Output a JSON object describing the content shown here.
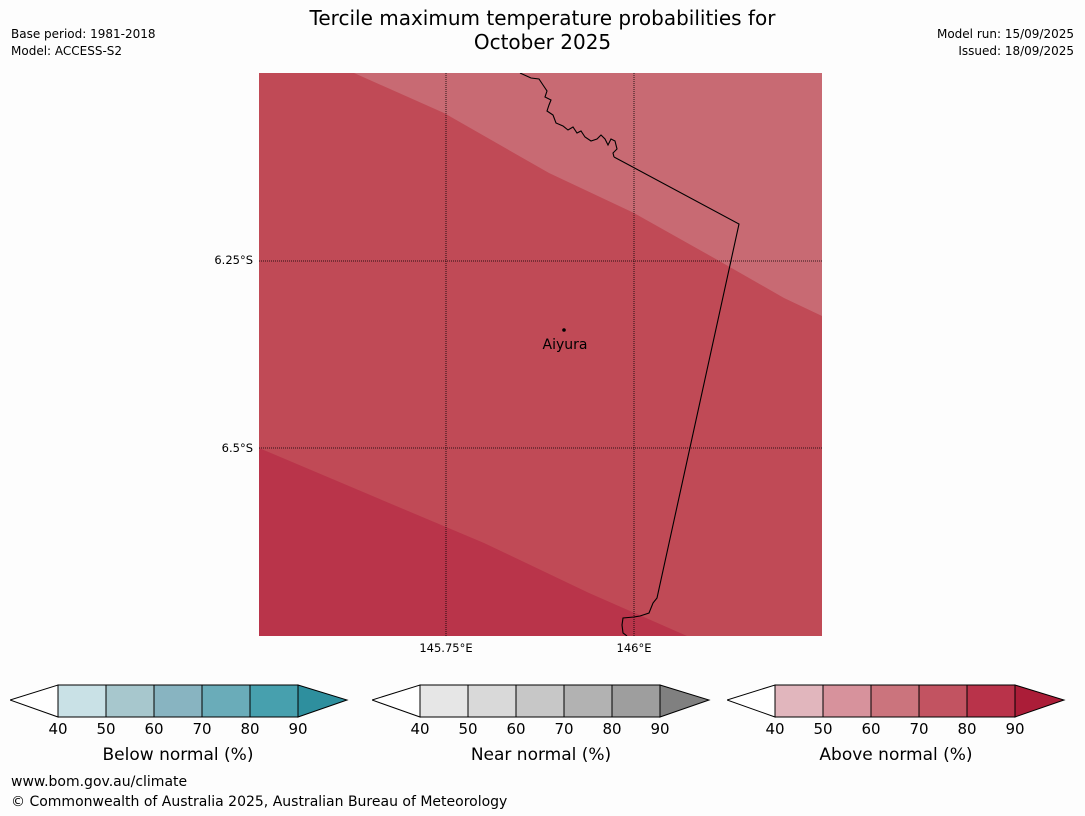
{
  "title": "Tercile maximum temperature probabilities for",
  "subtitle": "October 2025",
  "meta_left": {
    "base_period": "Base period: 1981-2018",
    "model": "Model: ACCESS-S2"
  },
  "meta_right": {
    "model_run": "Model run: 15/09/2025",
    "issued": "Issued: 18/09/2025"
  },
  "map": {
    "lat_ticks": [
      "6.25°S",
      "6.5°S"
    ],
    "lon_ticks": [
      "145.75°E",
      "146°E"
    ],
    "location": {
      "name": "Aiyura"
    },
    "colors": {
      "band_60_70": "#c86a73",
      "band_70_80": "#c04a56",
      "band_80_90": "#b9344a"
    }
  },
  "colorbars": {
    "below": {
      "label": "Below normal (%)",
      "ticks": [
        "40",
        "50",
        "60",
        "70",
        "80",
        "90"
      ],
      "colors": [
        "#ffffff",
        "#c9e1e6",
        "#a7c7cd",
        "#88b4c1",
        "#6aacb9",
        "#47a0ae",
        "#2e8f9e"
      ]
    },
    "near": {
      "label": "Near normal (%)",
      "ticks": [
        "40",
        "50",
        "60",
        "70",
        "80",
        "90"
      ],
      "colors": [
        "#ffffff",
        "#e6e6e6",
        "#d9d9d9",
        "#c7c7c7",
        "#b2b2b2",
        "#9e9e9e",
        "#808080"
      ]
    },
    "above": {
      "label": "Above normal (%)",
      "ticks": [
        "40",
        "50",
        "60",
        "70",
        "80",
        "90"
      ],
      "colors": [
        "#ffffff",
        "#e1b6bd",
        "#d7929c",
        "#cb747d",
        "#c25361",
        "#b9334a",
        "#ab1d38"
      ]
    }
  },
  "footer": {
    "website": "www.bom.gov.au/climate",
    "copyright": "© Commonwealth of Australia 2025, Australian Bureau of Meteorology"
  }
}
